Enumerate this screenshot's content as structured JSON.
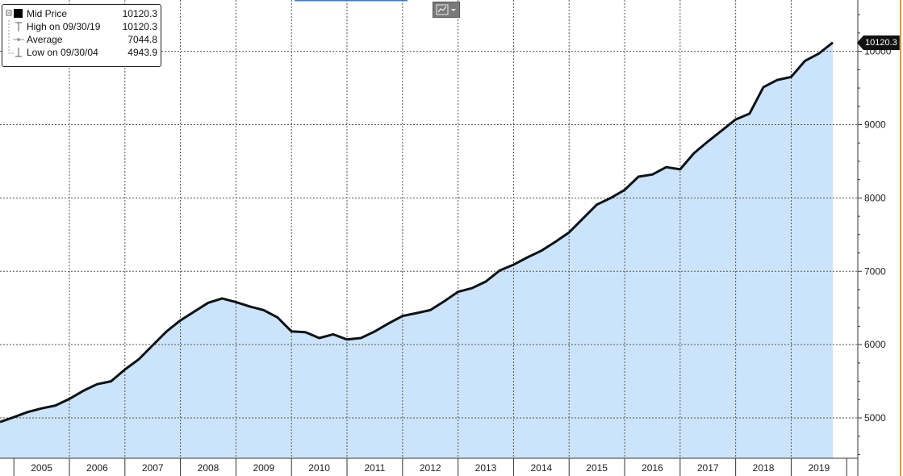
{
  "legend": {
    "mid_label": "Mid Price",
    "mid_value": "10120.3",
    "high_label": "High on 09/30/19",
    "high_value": "10120.3",
    "avg_label": "Average",
    "avg_value": "7044.8",
    "low_label": "Low on 09/30/04",
    "low_value": "4943.9"
  },
  "last_value_tag": "10120.3",
  "colors": {
    "line": "#111111",
    "fill": "#cce4fb",
    "grid": "#555555",
    "axis_text": "#222222"
  },
  "icons": {
    "chart_type_button": "chart-type-icon",
    "dropdown": "chevron-down-icon"
  },
  "chart_data": {
    "type": "area",
    "title": "",
    "xlabel": "",
    "ylabel": "",
    "x_ticks": [
      "2005",
      "2006",
      "2007",
      "2008",
      "2009",
      "2010",
      "2011",
      "2012",
      "2013",
      "2014",
      "2015",
      "2016",
      "2017",
      "2018",
      "2019"
    ],
    "y_ticks": [
      5000,
      6000,
      7000,
      8000,
      9000,
      10000
    ],
    "ylim": [
      4450,
      10700
    ],
    "xlim": [
      2004.75,
      2020.2
    ],
    "grid": true,
    "legend_position": "top-left",
    "series": [
      {
        "name": "Mid Price",
        "x": [
          2004.75,
          2005.0,
          2005.25,
          2005.5,
          2005.75,
          2006.0,
          2006.25,
          2006.5,
          2006.75,
          2007.0,
          2007.25,
          2007.5,
          2007.75,
          2008.0,
          2008.25,
          2008.5,
          2008.75,
          2009.0,
          2009.25,
          2009.5,
          2009.75,
          2010.0,
          2010.25,
          2010.5,
          2010.75,
          2011.0,
          2011.25,
          2011.5,
          2011.75,
          2012.0,
          2012.25,
          2012.5,
          2012.75,
          2013.0,
          2013.25,
          2013.5,
          2013.75,
          2014.0,
          2014.25,
          2014.5,
          2014.75,
          2015.0,
          2015.25,
          2015.5,
          2015.75,
          2016.0,
          2016.25,
          2016.5,
          2016.75,
          2017.0,
          2017.25,
          2017.5,
          2017.75,
          2018.0,
          2018.25,
          2018.5,
          2018.75,
          2019.0,
          2019.25,
          2019.5,
          2019.75
        ],
        "values": [
          4943.9,
          5010,
          5080,
          5130,
          5170,
          5260,
          5370,
          5460,
          5500,
          5660,
          5800,
          5990,
          6180,
          6330,
          6450,
          6570,
          6630,
          6580,
          6520,
          6470,
          6370,
          6180,
          6170,
          6090,
          6140,
          6070,
          6090,
          6180,
          6290,
          6390,
          6430,
          6470,
          6590,
          6720,
          6770,
          6860,
          7010,
          7090,
          7190,
          7280,
          7400,
          7530,
          7720,
          7910,
          8000,
          8110,
          8290,
          8320,
          8420,
          8390,
          8610,
          8770,
          8920,
          9070,
          9150,
          9510,
          9610,
          9650,
          9870,
          9970,
          10120.3
        ]
      }
    ]
  }
}
